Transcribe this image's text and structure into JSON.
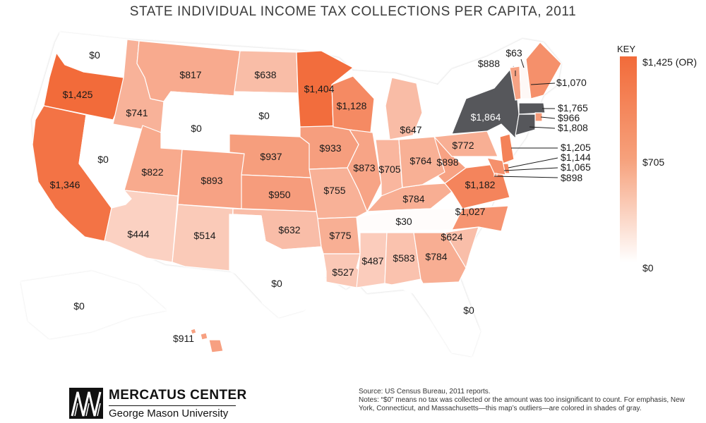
{
  "title": "STATE INDIVIDUAL INCOME TAX COLLECTIONS PER CAPITA, 2011",
  "key": {
    "title": "KEY",
    "max_label": "$1,425 (OR)",
    "mid_label": "$705",
    "min_label": "$0"
  },
  "colors": {
    "high": "#f26b3a",
    "low": "#ffffff",
    "outlier": "#56575b"
  },
  "states": [
    {
      "abbr": "WA",
      "label": "$0"
    },
    {
      "abbr": "OR",
      "label": "$1,425"
    },
    {
      "abbr": "CA",
      "label": "$1,346"
    },
    {
      "abbr": "NV",
      "label": "$0"
    },
    {
      "abbr": "ID",
      "label": "$741"
    },
    {
      "abbr": "MT",
      "label": "$817"
    },
    {
      "abbr": "WY",
      "label": "$0"
    },
    {
      "abbr": "UT",
      "label": "$822"
    },
    {
      "abbr": "AZ",
      "label": "$444"
    },
    {
      "abbr": "CO",
      "label": "$893"
    },
    {
      "abbr": "NM",
      "label": "$514"
    },
    {
      "abbr": "ND",
      "label": "$638"
    },
    {
      "abbr": "SD",
      "label": "$0"
    },
    {
      "abbr": "NE",
      "label": "$937"
    },
    {
      "abbr": "KS",
      "label": "$950"
    },
    {
      "abbr": "OK",
      "label": "$632"
    },
    {
      "abbr": "TX",
      "label": "$0"
    },
    {
      "abbr": "MN",
      "label": "$1,404"
    },
    {
      "abbr": "IA",
      "label": "$933"
    },
    {
      "abbr": "MO",
      "label": "$755"
    },
    {
      "abbr": "AR",
      "label": "$775"
    },
    {
      "abbr": "LA",
      "label": "$527"
    },
    {
      "abbr": "WI",
      "label": "$1,128"
    },
    {
      "abbr": "IL",
      "label": "$873"
    },
    {
      "abbr": "MI",
      "label": "$647"
    },
    {
      "abbr": "IN",
      "label": "$705"
    },
    {
      "abbr": "KY",
      "label": "$784"
    },
    {
      "abbr": "TN",
      "label": "$30"
    },
    {
      "abbr": "MS",
      "label": "$487"
    },
    {
      "abbr": "AL",
      "label": "$583"
    },
    {
      "abbr": "GA",
      "label": "$784"
    },
    {
      "abbr": "FL",
      "label": "$0"
    },
    {
      "abbr": "SC",
      "label": "$624"
    },
    {
      "abbr": "NC",
      "label": "$1,027"
    },
    {
      "abbr": "VA",
      "label": "$1,182"
    },
    {
      "abbr": "WV",
      "label": "$898"
    },
    {
      "abbr": "OH",
      "label": "$764"
    },
    {
      "abbr": "PA",
      "label": "$772"
    },
    {
      "abbr": "NY",
      "label": "$1,864"
    },
    {
      "abbr": "VT",
      "label": "$888"
    },
    {
      "abbr": "NH",
      "label": "$63"
    },
    {
      "abbr": "ME",
      "label": "$1,070"
    },
    {
      "abbr": "MA",
      "label": "$1,765"
    },
    {
      "abbr": "RI",
      "label": "$966"
    },
    {
      "abbr": "CT",
      "label": "$1,808"
    },
    {
      "abbr": "NJ",
      "label": "$1,205"
    },
    {
      "abbr": "DE",
      "label": "$1,144"
    },
    {
      "abbr": "MD",
      "label": "$1,065"
    },
    {
      "abbr": "DC",
      "label": "$898"
    },
    {
      "abbr": "AK",
      "label": "$0"
    },
    {
      "abbr": "HI",
      "label": "$911"
    }
  ],
  "branding": {
    "name": "MERCATUS CENTER",
    "sub": "George Mason University"
  },
  "source": "Source: US Census Bureau, 2011 reports.",
  "notes": "Notes: “$0” means no tax was collected or the amount was too insignificant to count. For emphasis, New York, Connecticut, and Massachusetts—this map’s outliers—are colored in shades of gray."
}
